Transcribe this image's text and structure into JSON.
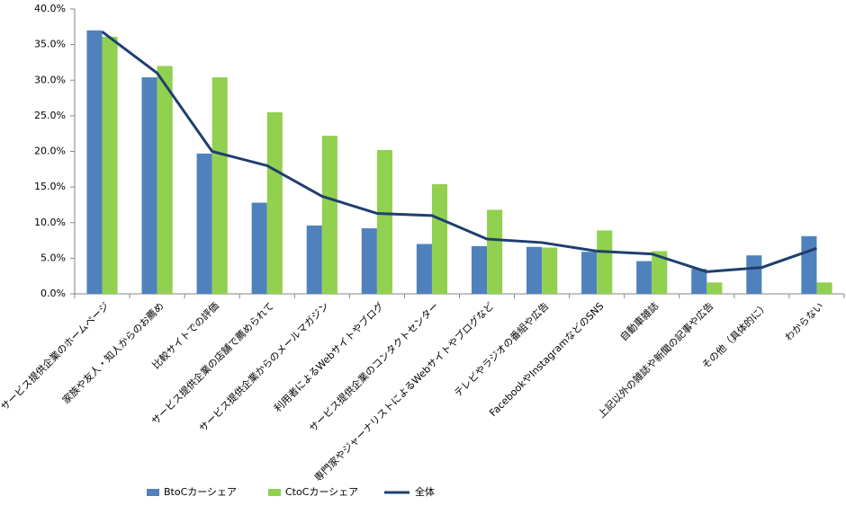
{
  "chart_data": {
    "type": "bar_line",
    "categories": [
      "サービス提供企業のホームページ",
      "家族や友人・知人からのお薦め",
      "比較サイトでの評価",
      "サービス提供企業の店舗で薦められて",
      "サービス提供企業からのメールマガジン",
      "利用者によるWebサイトやブログ",
      "サービス提供企業のコンタクトセンター",
      "専門家やジャーナリストによるWebサイトやブログなど",
      "テレビやラジオの番組や広告",
      "FacebookやInstagramなどのSNS",
      "自動車雑誌",
      "上記以外の雑誌や新聞の記事や広告",
      "その他（具体的に）",
      "わからない"
    ],
    "series": [
      {
        "name": "BtoCカーシェア",
        "type": "bar",
        "color": "#4f81bd",
        "values": [
          37.0,
          30.4,
          19.7,
          12.8,
          9.6,
          9.2,
          7.0,
          6.7,
          6.6,
          5.9,
          4.6,
          3.5,
          5.4,
          8.1
        ]
      },
      {
        "name": "CtoCカーシェア",
        "type": "bar",
        "color": "#92d050",
        "values": [
          36.1,
          32.0,
          30.4,
          25.5,
          22.2,
          20.2,
          15.4,
          11.8,
          6.5,
          8.9,
          6.0,
          1.6,
          null,
          1.6
        ]
      },
      {
        "name": "全体",
        "type": "line",
        "color": "#1f3f6e",
        "values": [
          36.8,
          31.0,
          20.0,
          18.0,
          13.7,
          11.3,
          11.0,
          7.7,
          7.2,
          6.0,
          5.6,
          3.1,
          3.7,
          6.4
        ]
      }
    ],
    "ylim": [
      0,
      40
    ],
    "yticks": [
      {
        "value": 0,
        "label": "0.0%"
      },
      {
        "value": 5,
        "label": "5.0%"
      },
      {
        "value": 10,
        "label": "10.0%"
      },
      {
        "value": 15,
        "label": "15.0%"
      },
      {
        "value": 20,
        "label": "20.0%"
      },
      {
        "value": 25,
        "label": "25.0%"
      },
      {
        "value": 30,
        "label": "30.0%"
      },
      {
        "value": 35,
        "label": "35.0%"
      },
      {
        "value": 40,
        "label": "40.0%"
      }
    ],
    "grid": false,
    "legend": "bottom"
  }
}
